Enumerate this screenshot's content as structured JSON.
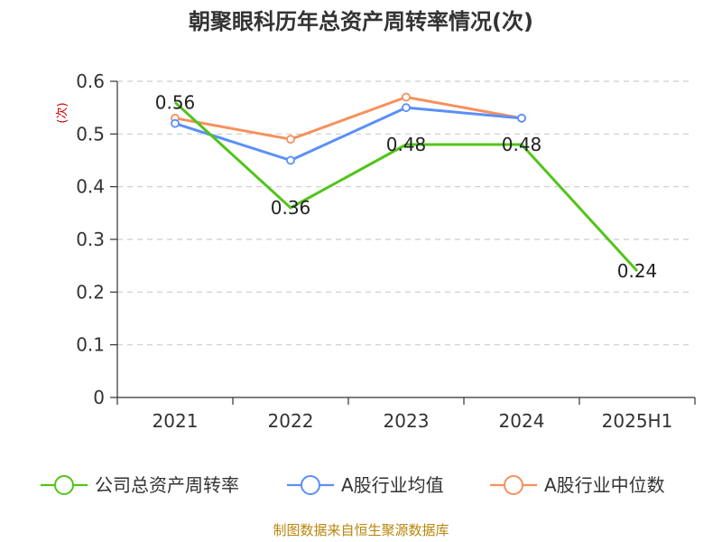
{
  "source_note": "制图数据来自恒生聚源数据库",
  "chart_data": {
    "type": "line",
    "title": "朝聚眼科历年总资产周转率情况(次)",
    "ylabel": "(次)",
    "xlabel": "",
    "categories": [
      "2021",
      "2022",
      "2023",
      "2024",
      "2025H1"
    ],
    "ylim": [
      0,
      0.6
    ],
    "yticks": [
      "0",
      "0.1",
      "0.2",
      "0.3",
      "0.4",
      "0.5",
      "0.6"
    ],
    "grid": true,
    "legend_position": "bottom",
    "series": [
      {
        "name": "公司总资产周转率",
        "color": "#52c41a",
        "values": [
          0.56,
          0.36,
          0.48,
          0.48,
          0.24
        ],
        "labels": [
          "0.56",
          "0.36",
          "0.48",
          "0.48",
          "0.24"
        ]
      },
      {
        "name": "A股行业均值",
        "color": "#5b8ff9",
        "values": [
          0.52,
          0.45,
          0.55,
          0.53,
          null
        ]
      },
      {
        "name": "A股行业中位数",
        "color": "#f6915d",
        "values": [
          0.53,
          0.49,
          0.57,
          0.53,
          null
        ]
      }
    ]
  }
}
